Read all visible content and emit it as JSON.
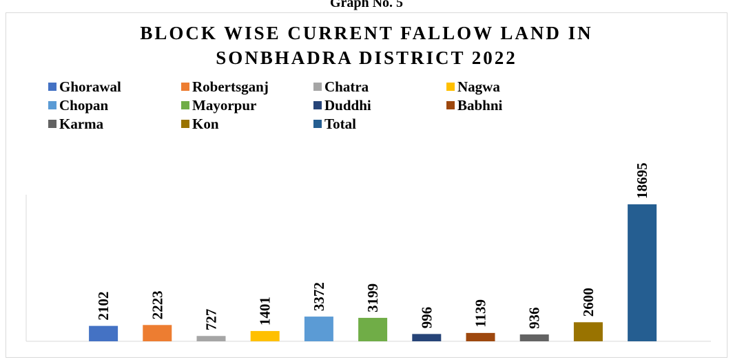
{
  "caption": "Graph No. 5",
  "chart_data": {
    "type": "bar",
    "title_lines": [
      "BLOCK WISE CURRENT FALLOW LAND  IN",
      "SONBHADRA DISTRICT 2022"
    ],
    "categories": [
      "Ghorawal",
      "Robertsganj",
      "Chatra",
      "Nagwa",
      "Chopan",
      "Mayorpur",
      "Duddhi",
      "Babhni",
      "Karma",
      "Kon",
      "Total"
    ],
    "values": [
      2102,
      2223,
      727,
      1401,
      3372,
      3199,
      996,
      1139,
      936,
      2600,
      18695
    ],
    "colors": [
      "#4472c4",
      "#ed7d31",
      "#a5a5a5",
      "#ffc000",
      "#5b9bd5",
      "#70ad47",
      "#264478",
      "#9e480e",
      "#636363",
      "#997300",
      "#255e91"
    ],
    "ylim": [
      0,
      20000
    ],
    "legend": "top"
  }
}
